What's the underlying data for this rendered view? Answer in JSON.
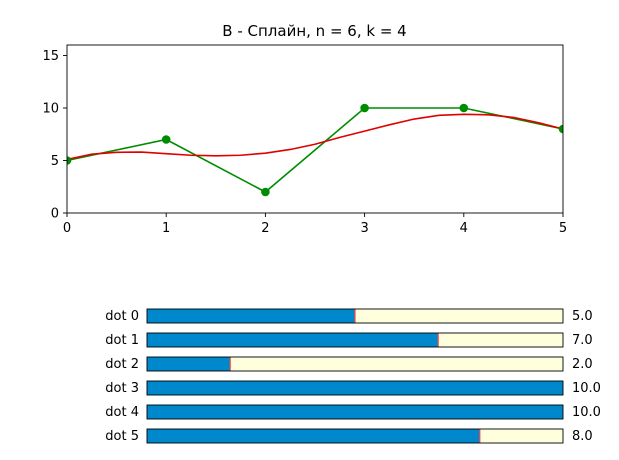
{
  "chart_data": [
    {
      "type": "line",
      "title": "B - Сплайн, n = 6, k = 4",
      "xlabel": "",
      "ylabel": "",
      "xlim": [
        0,
        5
      ],
      "ylim": [
        0,
        16
      ],
      "xticks": [
        0,
        1,
        2,
        3,
        4,
        5
      ],
      "yticks": [
        0,
        5,
        10,
        15
      ],
      "grid": false,
      "colors": {
        "control": "#008c00",
        "spline": "#e00000",
        "axes": "#000000"
      },
      "series": [
        {
          "kind": "control-polygon",
          "x": [
            0,
            1,
            2,
            3,
            4,
            5
          ],
          "y": [
            5,
            7,
            2,
            10,
            10,
            8
          ]
        },
        {
          "kind": "spline",
          "x": [
            0,
            0.25,
            0.5,
            0.75,
            1,
            1.25,
            1.5,
            1.75,
            2,
            2.25,
            2.5,
            2.75,
            3,
            3.25,
            3.5,
            3.75,
            4,
            4.25,
            4.5,
            4.75,
            5
          ],
          "y": [
            5.1,
            5.6,
            5.78,
            5.8,
            5.65,
            5.5,
            5.45,
            5.5,
            5.7,
            6.05,
            6.55,
            7.2,
            7.8,
            8.4,
            8.95,
            9.3,
            9.4,
            9.35,
            9.1,
            8.6,
            8.0
          ]
        }
      ]
    },
    {
      "type": "bar",
      "orientation": "horizontal",
      "categories": [
        "dot 0",
        "dot 1",
        "dot 2",
        "dot 3",
        "dot 4",
        "dot 5"
      ],
      "values": [
        5.0,
        7.0,
        2.0,
        10.0,
        10.0,
        8.0
      ],
      "value_labels": [
        "5.0",
        "7.0",
        "2.0",
        "10.0",
        "10.0",
        "8.0"
      ],
      "max": 10,
      "colors": {
        "fill": "#0088cc",
        "track": "#ffffdd",
        "marker": "#ff4444",
        "border": "#000000"
      }
    }
  ]
}
